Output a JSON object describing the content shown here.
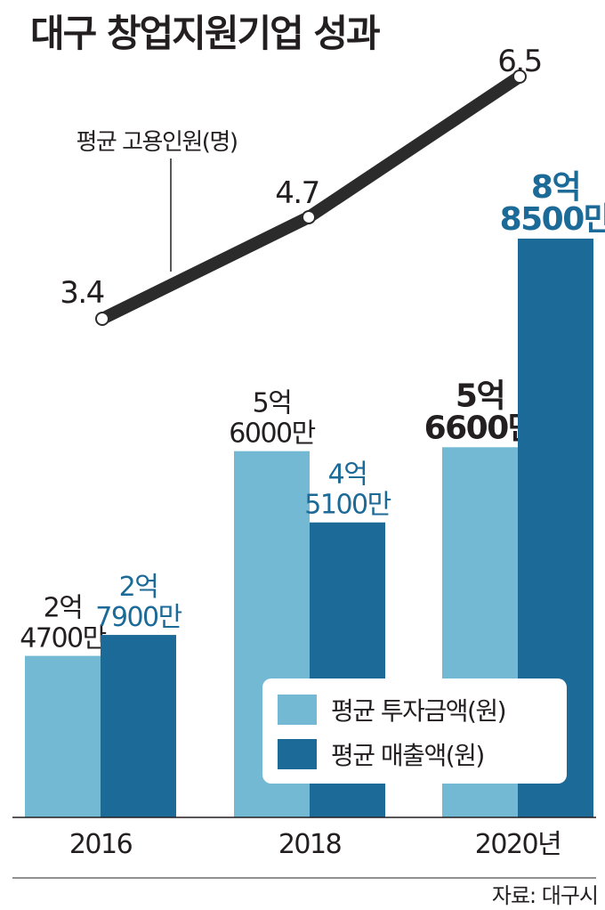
{
  "title": "대구 창업지원기업 성과",
  "source": "자료: 대구시",
  "colors": {
    "investment": "#74b9d3",
    "sales": "#1c6a97",
    "line": "#2b2b2b",
    "sales_label": "#1c6a97"
  },
  "chart_data": {
    "type": "bar",
    "categories": [
      "2016",
      "2018",
      "2020년"
    ],
    "series": [
      {
        "name": "평균 투자금액(원)",
        "values": [
          247000000,
          560000000,
          566000000
        ],
        "labels": [
          [
            "2억",
            "4700만"
          ],
          [
            "5억",
            "6000만"
          ],
          [
            "5억",
            "6600만"
          ]
        ]
      },
      {
        "name": "평균 매출액(원)",
        "values": [
          279000000,
          451000000,
          885000000
        ],
        "labels": [
          [
            "2억",
            "7900만"
          ],
          [
            "4억",
            "5100만"
          ],
          [
            "8억",
            "8500만"
          ]
        ]
      }
    ],
    "line_series": {
      "name": "평균 고용인원(명)",
      "values": [
        3.4,
        4.7,
        6.5
      ],
      "labels": [
        "3.4",
        "4.7",
        "6.5"
      ]
    },
    "legend_position": "bottom-right"
  }
}
